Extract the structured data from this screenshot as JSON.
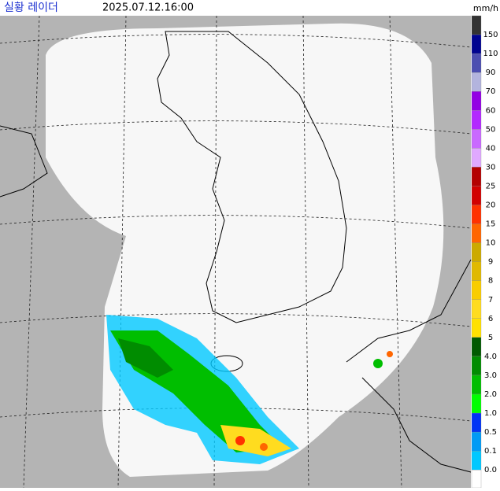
{
  "header": {
    "title": "실황 레이더",
    "time": "2025.07.12.16:00",
    "unit": "mm/h"
  },
  "legend": {
    "labels": [
      "150",
      "110",
      "90",
      "70",
      "60",
      "50",
      "40",
      "30",
      "25",
      "20",
      "15",
      "10",
      "9",
      "8",
      "7",
      "6",
      "5",
      "4.0",
      "3.0",
      "2.0",
      "1.0",
      "0.5",
      "0.1",
      "0.0"
    ],
    "colors": [
      "#333333",
      "#000390",
      "#4c4eb1",
      "#b3b4de",
      "#9300e4",
      "#b329ff",
      "#c969ff",
      "#e0a9ff",
      "#b40000",
      "#d20000",
      "#ff3200",
      "#ff6600",
      "#ccaa00",
      "#e0b900",
      "#f9cd00",
      "#ffdc1f",
      "#ffe100",
      "#005a00",
      "#008c00",
      "#00be00",
      "#00ff00",
      "#0033f5",
      "#009bf5",
      "#00c8ff",
      "#ffffff"
    ]
  }
}
